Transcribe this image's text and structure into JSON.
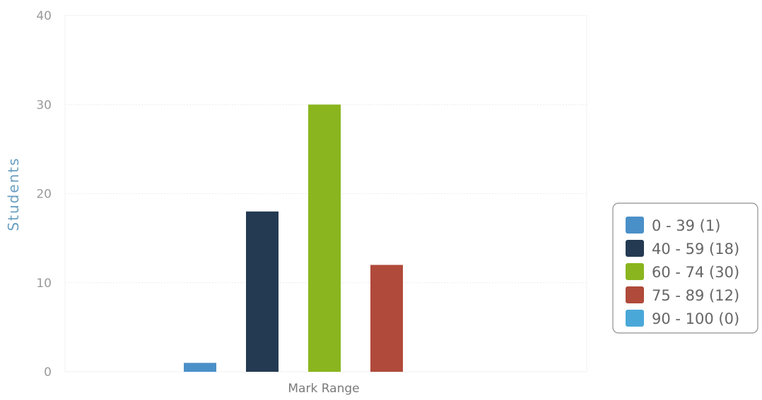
{
  "chart_data": {
    "type": "bar",
    "title": "",
    "xlabel": "Mark Range",
    "ylabel": "Students",
    "ylim": [
      0,
      40
    ],
    "yticks": [
      0,
      10,
      20,
      30,
      40
    ],
    "grid": true,
    "legend_position": "right",
    "series": [
      {
        "name": "0 - 39 (1)",
        "value": 1,
        "color": "#4a90c8"
      },
      {
        "name": "40 - 59 (18)",
        "value": 18,
        "color": "#243a52"
      },
      {
        "name": "60 - 74 (30)",
        "value": 30,
        "color": "#8ab51e"
      },
      {
        "name": "75 - 89 (12)",
        "value": 12,
        "color": "#b04a3a"
      },
      {
        "name": "90 - 100 (0)",
        "value": 0,
        "color": "#4aa8d8"
      }
    ]
  }
}
